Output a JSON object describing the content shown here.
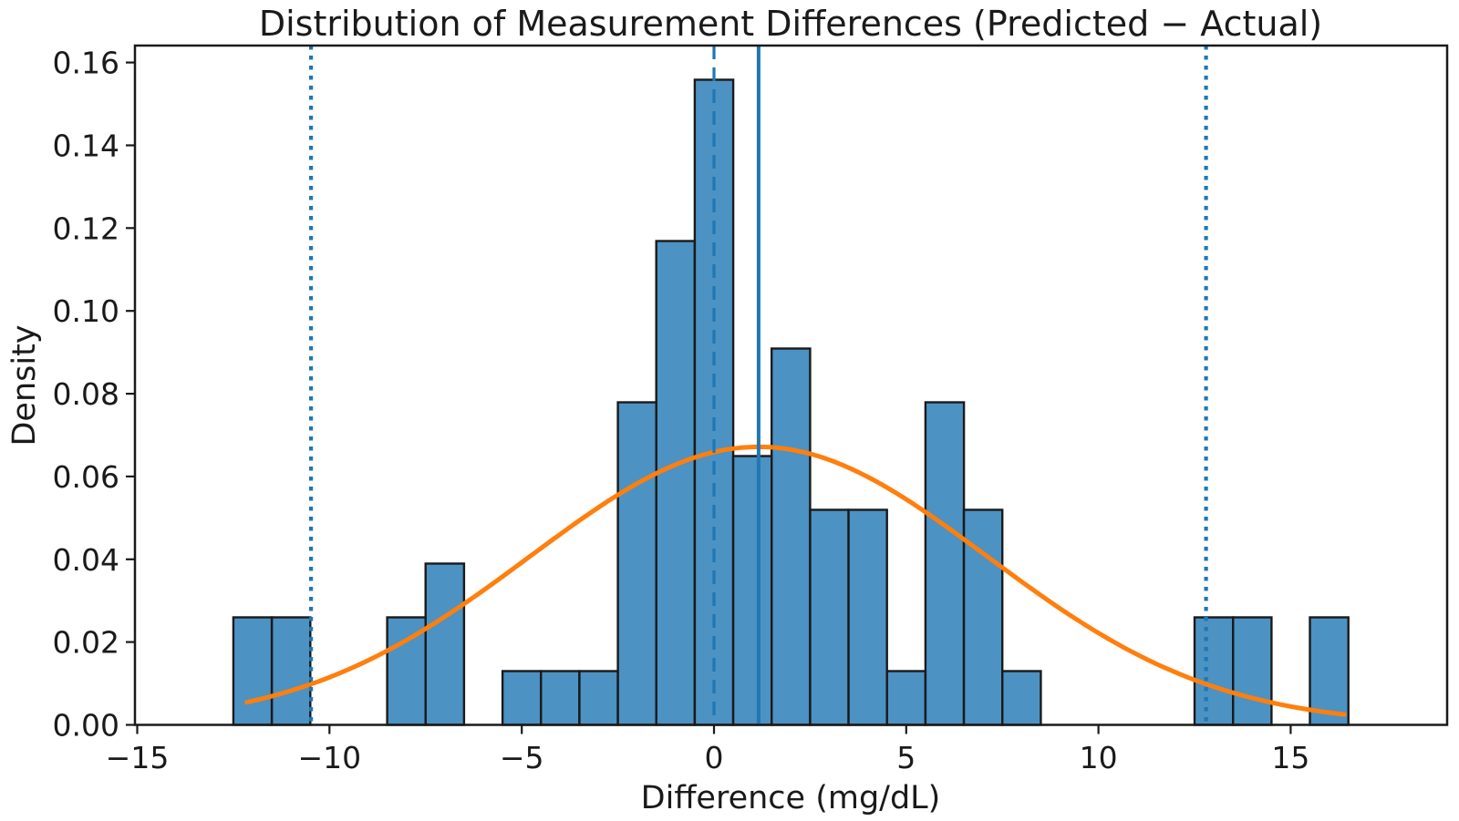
{
  "chart_data": {
    "type": "bar",
    "subtype": "histogram-with-normal-fit",
    "title": "Distribution of Measurement Differences (Predicted − Actual)",
    "xlabel": "Difference (mg/dL)",
    "ylabel": "Density",
    "xlim": [
      -15.06,
      19.07
    ],
    "ylim": [
      0,
      0.1641
    ],
    "grid": false,
    "legend": "none",
    "xticks": [
      {
        "value": -15,
        "label": "−15"
      },
      {
        "value": -10,
        "label": "−10"
      },
      {
        "value": -5,
        "label": "−5"
      },
      {
        "value": 0,
        "label": "0"
      },
      {
        "value": 5,
        "label": "5"
      },
      {
        "value": 10,
        "label": "10"
      },
      {
        "value": 15,
        "label": "15"
      }
    ],
    "yticks": [
      {
        "value": 0.0,
        "label": "0.00"
      },
      {
        "value": 0.02,
        "label": "0.02"
      },
      {
        "value": 0.04,
        "label": "0.04"
      },
      {
        "value": 0.06,
        "label": "0.06"
      },
      {
        "value": 0.08,
        "label": "0.08"
      },
      {
        "value": 0.1,
        "label": "0.10"
      },
      {
        "value": 0.12,
        "label": "0.12"
      },
      {
        "value": 0.14,
        "label": "0.14"
      },
      {
        "value": 0.16,
        "label": "0.16"
      }
    ],
    "histogram": {
      "bin_start": -12.5,
      "bin_width": 1.0,
      "n_total": 77,
      "counts": [
        2,
        2,
        0,
        0,
        2,
        3,
        0,
        1,
        1,
        1,
        6,
        9,
        12,
        5,
        7,
        4,
        4,
        1,
        6,
        4,
        1,
        0,
        0,
        0,
        0,
        2,
        2,
        0,
        2
      ],
      "densities": [
        0.026,
        0.026,
        0,
        0,
        0.026,
        0.039,
        0,
        0.013,
        0.013,
        0.013,
        0.078,
        0.117,
        0.156,
        0.065,
        0.091,
        0.052,
        0.052,
        0.013,
        0.078,
        0.052,
        0.013,
        0,
        0,
        0,
        0,
        0.026,
        0.026,
        0,
        0.026
      ],
      "fill_color": "#1f77b4",
      "fill_alpha": 0.8,
      "edge_color": "#1a1a1a"
    },
    "normal_fit": {
      "mean": 1.16,
      "sd": 5.94,
      "peak_density": 0.0671,
      "x_start": -12.15,
      "x_end": 16.4,
      "color": "#ff7f0e"
    },
    "reference_lines": [
      {
        "name": "mean-line",
        "x": 1.16,
        "style": "solid",
        "color": "#1f77b4"
      },
      {
        "name": "zero-line",
        "x": 0.0,
        "style": "dashed",
        "color": "#1f77b4"
      },
      {
        "name": "lower-loa-line",
        "x": -10.48,
        "style": "dotted",
        "color": "#1f77b4"
      },
      {
        "name": "upper-loa-line",
        "x": 12.8,
        "style": "dotted",
        "color": "#1f77b4"
      }
    ]
  }
}
